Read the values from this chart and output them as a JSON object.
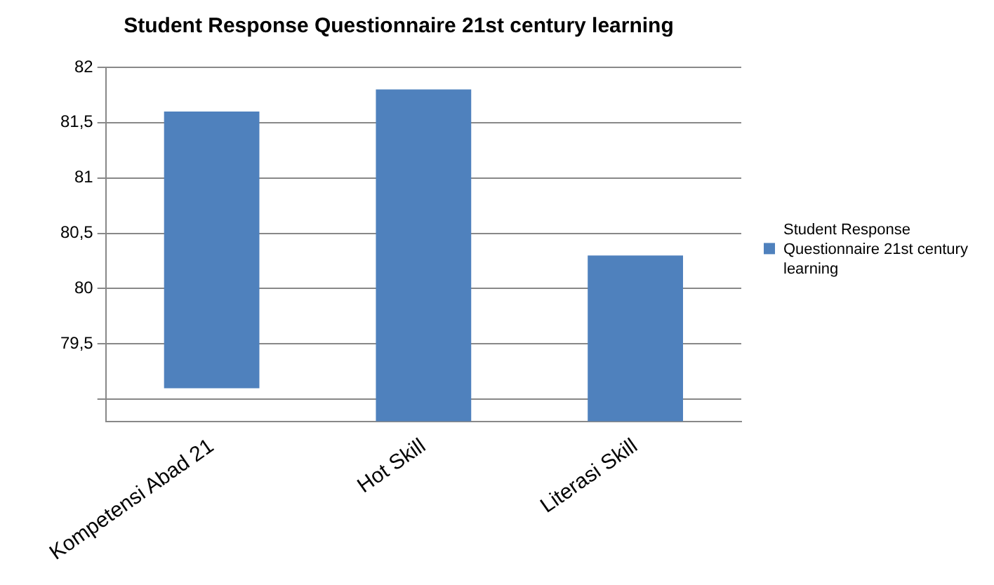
{
  "chart_data": {
    "type": "bar",
    "title": "Student Response Questionnaire 21st century learning",
    "categories": [
      "Kompetensi Abad 21",
      "Hot Skill",
      "Literasi Skill"
    ],
    "series": [
      {
        "name": "Student Response Questionnaire 21st century learning",
        "color": "#4f81bd",
        "values": [
          2.5,
          3.0,
          1.5
        ],
        "base": [
          79.1,
          78.8,
          78.8
        ]
      }
    ],
    "ylim": [
      78.8,
      82
    ],
    "yticks": [
      {
        "value": 79,
        "label": null
      },
      {
        "value": 79.5,
        "label": "79,5"
      },
      {
        "value": 80,
        "label": "80"
      },
      {
        "value": 80.5,
        "label": "80,5"
      },
      {
        "value": 81,
        "label": "81"
      },
      {
        "value": 81.5,
        "label": "81,5"
      },
      {
        "value": 82,
        "label": "82"
      }
    ],
    "grid": "y",
    "legend": "right"
  }
}
